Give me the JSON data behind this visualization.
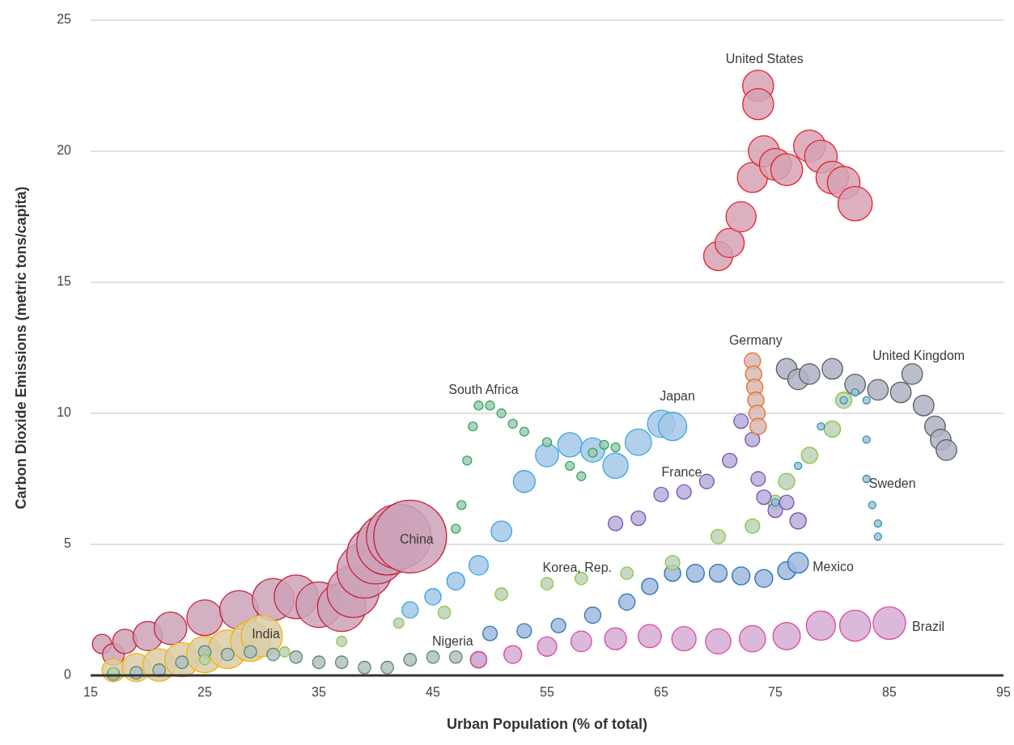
{
  "chart_data": {
    "type": "bubble",
    "xlabel": "Urban Population (% of total)",
    "ylabel": "Carbon Dioxide Emissions (metric tons/capita)",
    "xlim": [
      15,
      95
    ],
    "xticks": [
      15,
      25,
      35,
      45,
      55,
      65,
      75,
      85,
      95
    ],
    "ylim": [
      0,
      25
    ],
    "yticks": [
      0,
      5,
      10,
      15,
      20,
      25
    ],
    "grid": "y",
    "marker": "circle",
    "relative": false,
    "series": [
      {
        "name": "United States",
        "color": "#e8202a",
        "x": [
          70,
          71,
          72,
          73,
          73.5,
          73.5,
          74,
          75,
          76,
          78,
          79,
          80,
          81,
          82
        ],
        "values": [
          16.0,
          16.5,
          17.5,
          19.0,
          22.5,
          21.8,
          20.0,
          19.5,
          19.3,
          20.2,
          19.8,
          19.0,
          18.8,
          18.0
        ],
        "sizes": [
          0.16,
          0.16,
          0.17,
          0.17,
          0.18,
          0.18,
          0.18,
          0.19,
          0.19,
          0.19,
          0.2,
          0.2,
          0.2,
          0.22
        ]
      },
      {
        "name": "China",
        "color": "#c8203a",
        "x": [
          16,
          17,
          18,
          20,
          22,
          25,
          28,
          31,
          33,
          35,
          37,
          38,
          39,
          40,
          41,
          42,
          43
        ],
        "values": [
          1.2,
          0.8,
          1.3,
          1.5,
          1.8,
          2.2,
          2.5,
          2.9,
          3.0,
          2.7,
          2.6,
          3.2,
          4.0,
          4.6,
          5.0,
          5.3,
          5.3
        ],
        "sizes": [
          0.07,
          0.09,
          0.11,
          0.16,
          0.2,
          0.24,
          0.28,
          0.33,
          0.36,
          0.39,
          0.44,
          0.51,
          0.57,
          0.64,
          0.71,
          0.79,
          1
        ]
      },
      {
        "name": "India",
        "color": "#f5b400",
        "x": [
          17,
          19,
          21,
          23,
          25,
          27,
          29,
          30
        ],
        "values": [
          0.2,
          0.3,
          0.4,
          0.6,
          0.8,
          1.0,
          1.3,
          1.5
        ],
        "sizes": [
          0.1,
          0.15,
          0.2,
          0.22,
          0.25,
          0.28,
          0.3,
          0.32
        ]
      },
      {
        "name": "Nigeria",
        "color": "#5f8a66",
        "x": [
          17,
          19,
          21,
          23,
          25,
          27,
          29,
          31,
          33,
          35,
          37,
          39,
          41,
          43,
          45,
          47,
          49
        ],
        "values": [
          0.05,
          0.1,
          0.2,
          0.5,
          0.9,
          0.8,
          0.9,
          0.8,
          0.7,
          0.5,
          0.5,
          0.3,
          0.3,
          0.6,
          0.7,
          0.7,
          0.6
        ],
        "sizes": [
          0.03,
          0.03,
          0.03,
          0.03,
          0.03,
          0.03,
          0.03,
          0.03,
          0.03,
          0.03,
          0.03,
          0.03,
          0.03,
          0.03,
          0.03,
          0.03,
          0.05
        ]
      },
      {
        "name": "Brazil",
        "color": "#e0479e",
        "x": [
          49,
          52,
          55,
          58,
          61,
          64,
          67,
          70,
          73,
          76,
          79,
          82,
          85
        ],
        "values": [
          0.6,
          0.8,
          1.1,
          1.3,
          1.4,
          1.5,
          1.4,
          1.3,
          1.4,
          1.5,
          1.9,
          1.9,
          2.0
        ],
        "sizes": [
          0.05,
          0.06,
          0.07,
          0.08,
          0.09,
          0.1,
          0.11,
          0.12,
          0.13,
          0.14,
          0.16,
          0.18,
          0.2
        ]
      },
      {
        "name": "Mexico",
        "color": "#2a74c0",
        "x": [
          50,
          53,
          56,
          59,
          62,
          64,
          66,
          68,
          70,
          72,
          74,
          76,
          77
        ],
        "values": [
          1.6,
          1.7,
          1.9,
          2.3,
          2.8,
          3.4,
          3.9,
          3.9,
          3.9,
          3.8,
          3.7,
          4.0,
          4.3
        ],
        "sizes": [
          0.04,
          0.04,
          0.04,
          0.05,
          0.05,
          0.05,
          0.05,
          0.06,
          0.06,
          0.06,
          0.06,
          0.06,
          0.08
        ]
      },
      {
        "name": "Korea, Rep.",
        "color": "#8dc63f",
        "x": [
          17,
          25,
          32,
          37,
          42,
          46,
          51,
          55,
          58,
          62,
          66,
          70,
          73,
          75,
          76,
          78,
          80,
          81
        ],
        "values": [
          0.1,
          0.6,
          0.9,
          1.3,
          2.0,
          2.4,
          3.1,
          3.5,
          3.7,
          3.9,
          4.3,
          5.3,
          5.7,
          6.6,
          7.4,
          8.4,
          9.4,
          10.5
        ],
        "sizes": [
          0.02,
          0.02,
          0.02,
          0.02,
          0.02,
          0.03,
          0.03,
          0.03,
          0.03,
          0.03,
          0.04,
          0.04,
          0.04,
          0.04,
          0.05,
          0.05,
          0.05,
          0.05
        ]
      },
      {
        "name": "Japan",
        "color": "#3aa8e0",
        "x": [
          43,
          45,
          47,
          49,
          51,
          53,
          55,
          57,
          59,
          61,
          63,
          65,
          66
        ],
        "values": [
          2.5,
          3.0,
          3.6,
          4.2,
          5.5,
          7.4,
          8.4,
          8.8,
          8.6,
          8.0,
          8.9,
          9.6,
          9.5
        ],
        "sizes": [
          0.05,
          0.05,
          0.06,
          0.07,
          0.08,
          0.09,
          0.1,
          0.11,
          0.11,
          0.12,
          0.13,
          0.14,
          0.15
        ]
      },
      {
        "name": "South Africa",
        "color": "#2aa84a",
        "x": [
          47,
          47.5,
          48,
          48.5,
          49,
          50,
          51,
          52,
          53,
          55,
          57,
          58,
          59,
          60,
          61
        ],
        "values": [
          5.6,
          6.5,
          8.2,
          9.5,
          10.3,
          10.3,
          10.0,
          9.6,
          9.3,
          8.9,
          8.0,
          7.6,
          8.5,
          8.8,
          8.7
        ],
        "sizes": [
          0.015,
          0.015,
          0.015,
          0.015,
          0.015,
          0.015,
          0.015,
          0.015,
          0.015,
          0.015,
          0.015,
          0.015,
          0.015,
          0.015,
          0.015
        ]
      },
      {
        "name": "France",
        "color": "#7b4fb5",
        "x": [
          61,
          63,
          65,
          67,
          69,
          71,
          72,
          73,
          73.5,
          74,
          75,
          76,
          77
        ],
        "values": [
          5.8,
          6.0,
          6.9,
          7.0,
          7.4,
          8.2,
          9.7,
          9.0,
          7.5,
          6.8,
          6.3,
          6.6,
          5.9
        ],
        "sizes": [
          0.04,
          0.04,
          0.04,
          0.04,
          0.04,
          0.04,
          0.04,
          0.04,
          0.04,
          0.04,
          0.04,
          0.04,
          0.05
        ]
      },
      {
        "name": "Germany",
        "color": "#e8742b",
        "x": [
          73,
          73.1,
          73.2,
          73.3,
          73.4,
          73.5
        ],
        "values": [
          12.0,
          11.5,
          11.0,
          10.5,
          10.0,
          9.5
        ],
        "sizes": [
          0.05,
          0.05,
          0.05,
          0.05,
          0.05,
          0.05
        ]
      },
      {
        "name": "United Kingdom",
        "color": "#5a5c60",
        "x": [
          76,
          77,
          78,
          80,
          82,
          84,
          86,
          87,
          88,
          89,
          89.5,
          90
        ],
        "values": [
          11.7,
          11.3,
          11.5,
          11.7,
          11.1,
          10.9,
          10.8,
          11.5,
          10.3,
          9.5,
          9.0,
          8.6
        ],
        "sizes": [
          0.08,
          0.08,
          0.08,
          0.08,
          0.08,
          0.08,
          0.08,
          0.08,
          0.08,
          0.08,
          0.08,
          0.08
        ]
      },
      {
        "name": "Sweden",
        "color": "#2a8fa8",
        "x": [
          75,
          77,
          79,
          81,
          82,
          83,
          83,
          83,
          83.5,
          84,
          84
        ],
        "values": [
          6.6,
          8.0,
          9.5,
          10.5,
          10.8,
          10.5,
          9.0,
          7.5,
          6.5,
          5.8,
          5.3
        ],
        "sizes": [
          0.01,
          0.01,
          0.01,
          0.01,
          0.01,
          0.01,
          0.01,
          0.01,
          0.01,
          0.01,
          0.01
        ]
      }
    ]
  }
}
